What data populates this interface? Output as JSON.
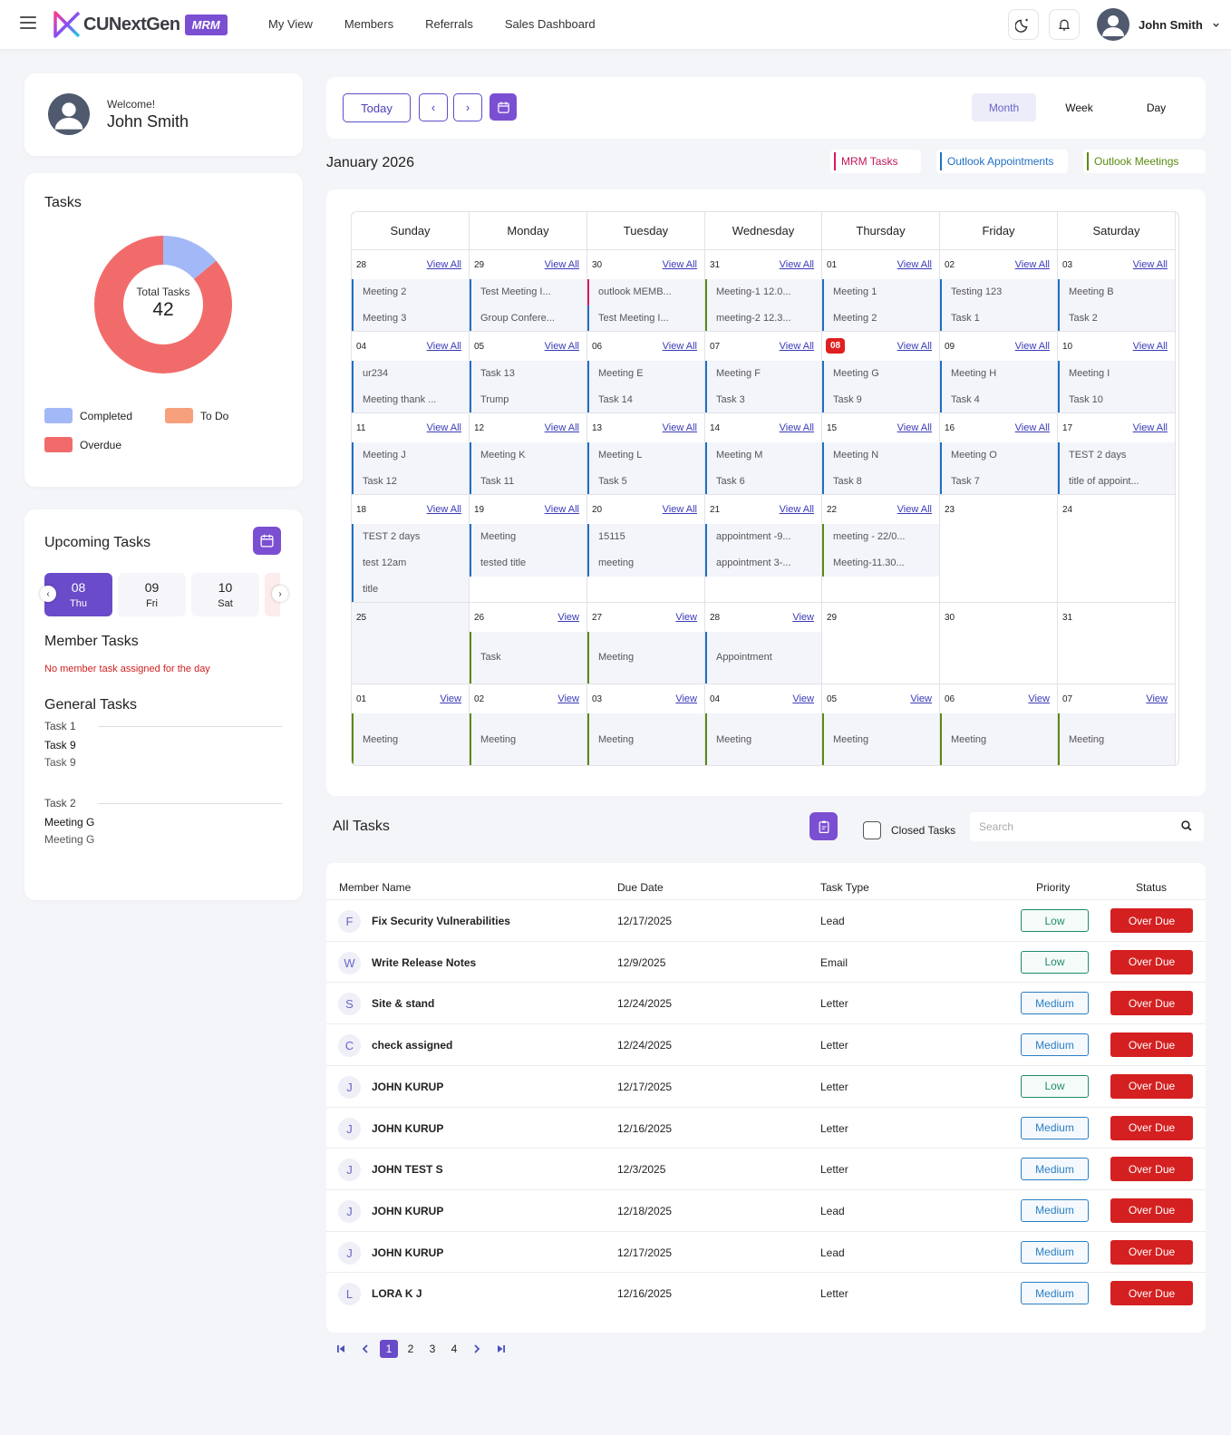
{
  "header": {
    "brand": "CUNextGen",
    "badge": "MRM",
    "nav": [
      "My View",
      "Members",
      "Referrals",
      "Sales Dashboard"
    ],
    "user_name": "John Smith"
  },
  "welcome": {
    "label": "Welcome!",
    "name": "John Smith"
  },
  "tasks_card": {
    "title": "Tasks",
    "total_label": "Total Tasks",
    "total": "42",
    "segments": [
      {
        "name": "Completed",
        "fraction": 0.14,
        "color": "#a3b8f7"
      },
      {
        "name": "Overdue",
        "fraction": 0.86,
        "color": "#f26b6b"
      }
    ],
    "legend": [
      {
        "label": "Completed",
        "color": "#a3b8f7"
      },
      {
        "label": "To Do",
        "color": "#f7a07c"
      },
      {
        "label": "Overdue",
        "color": "#f26b6b"
      }
    ]
  },
  "upcoming": {
    "title": "Upcoming Tasks",
    "dates": [
      {
        "num": "08",
        "day": "Thu"
      },
      {
        "num": "09",
        "day": "Fri"
      },
      {
        "num": "10",
        "day": "Sat"
      }
    ],
    "member_tasks_title": "Member Tasks",
    "member_tasks_empty": "No member task assigned for the day",
    "general_tasks_title": "General Tasks",
    "groups": [
      {
        "head": "Task 1",
        "bold": "Task 9",
        "sub": "Task 9"
      },
      {
        "head": "Task 2",
        "bold": "Meeting G",
        "sub": "Meeting G"
      }
    ]
  },
  "calendar": {
    "today_btn": "Today",
    "prev": "‹",
    "next": "›",
    "views": [
      "Month",
      "Week",
      "Day"
    ],
    "month_title": "January 2026",
    "categories": [
      {
        "label": "MRM Tasks",
        "color": "#d81b60"
      },
      {
        "label": "Outlook Appointments",
        "color": "#1f6fc4"
      },
      {
        "label": "Outlook Meetings",
        "color": "#5a8a10"
      }
    ],
    "weekdays": [
      "Sunday",
      "Monday",
      "Tuesday",
      "Wednesday",
      "Thursday",
      "Friday",
      "Saturday"
    ],
    "weeks": [
      [
        {
          "d": "28",
          "link": "View All",
          "ev": [
            [
              "Meeting 2",
              "#1f6fc4"
            ],
            [
              "Meeting 3",
              "#1f6fc4"
            ]
          ]
        },
        {
          "d": "29",
          "link": "View All",
          "ev": [
            [
              "Test Meeting I...",
              "#1f6fc4"
            ],
            [
              "Group Confere...",
              "#1f6fc4"
            ]
          ]
        },
        {
          "d": "30",
          "link": "View All",
          "ev": [
            [
              "outlook MEMB...",
              "#d81b60"
            ],
            [
              "Test Meeting I...",
              "#1f6fc4"
            ]
          ]
        },
        {
          "d": "31",
          "link": "View All",
          "ev": [
            [
              "Meeting-1 12.0...",
              "#5a8a10"
            ],
            [
              "meeting-2 12.3...",
              "#5a8a10"
            ]
          ]
        },
        {
          "d": "01",
          "link": "View All",
          "ev": [
            [
              "Meeting 1",
              "#1f6fc4"
            ],
            [
              "Meeting 2",
              "#1f6fc4"
            ]
          ]
        },
        {
          "d": "02",
          "link": "View All",
          "ev": [
            [
              "Testing 123",
              "#1f6fc4"
            ],
            [
              "Task 1",
              "#1f6fc4"
            ]
          ]
        },
        {
          "d": "03",
          "link": "View All",
          "ev": [
            [
              "Meeting B",
              "#1f6fc4"
            ],
            [
              "Task 2",
              "#1f6fc4"
            ]
          ]
        }
      ],
      [
        {
          "d": "04",
          "link": "View All",
          "ev": [
            [
              "ur234",
              "#1f6fc4"
            ],
            [
              "Meeting thank ...",
              "#1f6fc4"
            ]
          ]
        },
        {
          "d": "05",
          "link": "View All",
          "ev": [
            [
              "Task 13",
              "#1f6fc4"
            ],
            [
              "Trump",
              "#1f6fc4"
            ]
          ]
        },
        {
          "d": "06",
          "link": "View All",
          "ev": [
            [
              "Meeting E",
              "#1f6fc4"
            ],
            [
              "Task 14",
              "#1f6fc4"
            ]
          ]
        },
        {
          "d": "07",
          "link": "View All",
          "ev": [
            [
              "Meeting F",
              "#1f6fc4"
            ],
            [
              "Task 3",
              "#1f6fc4"
            ]
          ]
        },
        {
          "d": "08",
          "link": "View All",
          "today": true,
          "ev": [
            [
              "Meeting G",
              "#1f6fc4"
            ],
            [
              "Task 9",
              "#1f6fc4"
            ]
          ]
        },
        {
          "d": "09",
          "link": "View All",
          "ev": [
            [
              "Meeting H",
              "#1f6fc4"
            ],
            [
              "Task 4",
              "#1f6fc4"
            ]
          ]
        },
        {
          "d": "10",
          "link": "View All",
          "ev": [
            [
              "Meeting I",
              "#1f6fc4"
            ],
            [
              "Task 10",
              "#1f6fc4"
            ]
          ]
        }
      ],
      [
        {
          "d": "11",
          "link": "View All",
          "ev": [
            [
              "Meeting J",
              "#1f6fc4"
            ],
            [
              "Task 12",
              "#1f6fc4"
            ]
          ]
        },
        {
          "d": "12",
          "link": "View All",
          "ev": [
            [
              "Meeting K",
              "#1f6fc4"
            ],
            [
              "Task 11",
              "#1f6fc4"
            ]
          ]
        },
        {
          "d": "13",
          "link": "View All",
          "ev": [
            [
              "Meeting L",
              "#1f6fc4"
            ],
            [
              "Task 5",
              "#1f6fc4"
            ]
          ]
        },
        {
          "d": "14",
          "link": "View All",
          "ev": [
            [
              "Meeting M",
              "#1f6fc4"
            ],
            [
              "Task 6",
              "#1f6fc4"
            ]
          ]
        },
        {
          "d": "15",
          "link": "View All",
          "ev": [
            [
              "Meeting N",
              "#1f6fc4"
            ],
            [
              "Task 8",
              "#1f6fc4"
            ]
          ]
        },
        {
          "d": "16",
          "link": "View All",
          "ev": [
            [
              "Meeting O",
              "#1f6fc4"
            ],
            [
              "Task 7",
              "#1f6fc4"
            ]
          ]
        },
        {
          "d": "17",
          "link": "View All",
          "ev": [
            [
              "TEST 2 days",
              "#1f6fc4"
            ],
            [
              "title of appoint...",
              "#1f6fc4"
            ]
          ]
        }
      ],
      [
        {
          "d": "18",
          "link": "View All",
          "ev": [
            [
              "TEST 2 days",
              "#1f6fc4"
            ],
            [
              "test 12am",
              "#1f6fc4"
            ],
            [
              "title",
              "#1f6fc4"
            ]
          ]
        },
        {
          "d": "19",
          "link": "View All",
          "ev": [
            [
              "Meeting",
              "#1f6fc4"
            ],
            [
              "tested title",
              "#1f6fc4"
            ]
          ]
        },
        {
          "d": "20",
          "link": "View All",
          "ev": [
            [
              "15115",
              "#1f6fc4"
            ],
            [
              "meeting",
              "#1f6fc4"
            ]
          ]
        },
        {
          "d": "21",
          "link": "View All",
          "ev": [
            [
              "appointment -9...",
              "#1f6fc4"
            ],
            [
              "appointment 3-...",
              "#1f6fc4"
            ]
          ]
        },
        {
          "d": "22",
          "link": "View All",
          "ev": [
            [
              "meeting - 22/0...",
              "#5a8a10"
            ],
            [
              "Meeting-11.30...",
              "#5a8a10"
            ]
          ]
        },
        {
          "d": "23",
          "link": "",
          "ev": []
        },
        {
          "d": "24",
          "link": "",
          "ev": []
        }
      ],
      [
        {
          "d": "25",
          "link": "",
          "shaded": true,
          "ev": []
        },
        {
          "d": "26",
          "link": "View",
          "ev": [
            [
              "Task",
              "#5a8a10"
            ]
          ]
        },
        {
          "d": "27",
          "link": "View",
          "ev": [
            [
              "Meeting",
              "#5a8a10"
            ]
          ]
        },
        {
          "d": "28",
          "link": "View",
          "ev": [
            [
              "Appointment",
              "#1f6fc4"
            ]
          ]
        },
        {
          "d": "29",
          "link": "",
          "ev": []
        },
        {
          "d": "30",
          "link": "",
          "ev": []
        },
        {
          "d": "31",
          "link": "",
          "ev": []
        }
      ],
      [
        {
          "d": "01",
          "link": "View",
          "ev": [
            [
              "Meeting",
              "#5a8a10"
            ]
          ]
        },
        {
          "d": "02",
          "link": "View",
          "ev": [
            [
              "Meeting",
              "#5a8a10"
            ]
          ]
        },
        {
          "d": "03",
          "link": "View",
          "ev": [
            [
              "Meeting",
              "#5a8a10"
            ]
          ]
        },
        {
          "d": "04",
          "link": "View",
          "ev": [
            [
              "Meeting",
              "#5a8a10"
            ]
          ]
        },
        {
          "d": "05",
          "link": "View",
          "ev": [
            [
              "Meeting",
              "#5a8a10"
            ]
          ]
        },
        {
          "d": "06",
          "link": "View",
          "ev": [
            [
              "Meeting",
              "#5a8a10"
            ]
          ]
        },
        {
          "d": "07",
          "link": "View",
          "ev": [
            [
              "Meeting",
              "#5a8a10"
            ]
          ]
        }
      ]
    ]
  },
  "all_tasks": {
    "title": "All Tasks",
    "closed_label": "Closed Tasks",
    "search_placeholder": "Search",
    "columns": [
      "Member Name",
      "Due Date",
      "Task Type",
      "Priority",
      "Status"
    ],
    "rows": [
      {
        "initial": "F",
        "name": "Fix Security Vulnerabilities",
        "due": "12/17/2025",
        "type": "Lead",
        "priority": "Low",
        "status": "Over Due"
      },
      {
        "initial": "W",
        "name": "Write Release Notes",
        "due": "12/9/2025",
        "type": "Email",
        "priority": "Low",
        "status": "Over Due"
      },
      {
        "initial": "S",
        "name": "Site & stand",
        "due": "12/24/2025",
        "type": "Letter",
        "priority": "Medium",
        "status": "Over Due"
      },
      {
        "initial": "C",
        "name": "check assigned",
        "due": "12/24/2025",
        "type": "Letter",
        "priority": "Medium",
        "status": "Over Due"
      },
      {
        "initial": "J",
        "name": "JOHN KURUP",
        "due": "12/17/2025",
        "type": "Letter",
        "priority": "Low",
        "status": "Over Due"
      },
      {
        "initial": "J",
        "name": "JOHN KURUP",
        "due": "12/16/2025",
        "type": "Letter",
        "priority": "Medium",
        "status": "Over Due"
      },
      {
        "initial": "J",
        "name": "JOHN TEST S",
        "due": "12/3/2025",
        "type": "Letter",
        "priority": "Medium",
        "status": "Over Due"
      },
      {
        "initial": "J",
        "name": "JOHN KURUP",
        "due": "12/18/2025",
        "type": "Lead",
        "priority": "Medium",
        "status": "Over Due"
      },
      {
        "initial": "J",
        "name": "JOHN KURUP",
        "due": "12/17/2025",
        "type": "Lead",
        "priority": "Medium",
        "status": "Over Due"
      },
      {
        "initial": "L",
        "name": "LORA K J",
        "due": "12/16/2025",
        "type": "Letter",
        "priority": "Medium",
        "status": "Over Due"
      }
    ],
    "pages": [
      "1",
      "2",
      "3",
      "4"
    ],
    "current_page": "1"
  }
}
